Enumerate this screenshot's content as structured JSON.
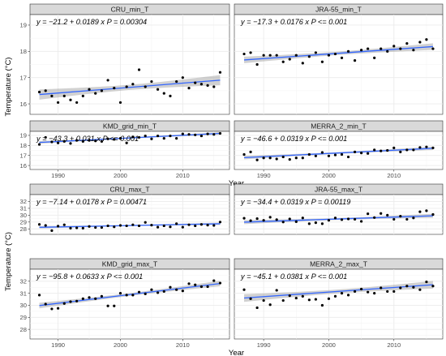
{
  "chart_data": [
    {
      "type": "scatter",
      "title": "CRU_min_T",
      "equation": "y = −21.2 + 0.0189 x   P = 0.00304",
      "xlabel": "Year",
      "ylabel": "Temperature (°C)",
      "xlim": [
        1985.5,
        2017.5
      ],
      "xticks": [
        1990,
        2000,
        2010
      ],
      "ylim": [
        15.6,
        19.4
      ],
      "yticks": [
        16,
        17,
        18,
        19
      ],
      "grid": true,
      "fit": {
        "intercept": -21.2,
        "slope": 0.0189
      },
      "x": [
        1987,
        1988,
        1989,
        1990,
        1991,
        1992,
        1993,
        1994,
        1995,
        1996,
        1997,
        1998,
        1999,
        2000,
        2001,
        2002,
        2003,
        2004,
        2005,
        2006,
        2007,
        2008,
        2009,
        2010,
        2011,
        2012,
        2013,
        2014,
        2015,
        2016
      ],
      "y": [
        16.45,
        16.5,
        16.3,
        16.05,
        16.3,
        16.15,
        16.05,
        16.3,
        16.55,
        16.4,
        16.5,
        16.9,
        16.6,
        16.05,
        16.65,
        16.75,
        17.3,
        16.65,
        16.85,
        16.55,
        16.4,
        16.3,
        16.85,
        17.0,
        16.6,
        16.8,
        16.75,
        16.7,
        16.65,
        17.2
      ]
    },
    {
      "type": "scatter",
      "title": "JRA-55_min_T",
      "equation": "y = −17.3 + 0.0176 x   P <= 0.001",
      "xlabel": "Year",
      "ylabel": "Temperature (°C)",
      "xlim": [
        1985.5,
        2017.5
      ],
      "xticks": [
        1990,
        2000,
        2010
      ],
      "ylim": [
        15.6,
        19.4
      ],
      "yticks": [
        16,
        17,
        18,
        19
      ],
      "grid": true,
      "fit": {
        "intercept": -17.3,
        "slope": 0.0176
      },
      "x": [
        1987,
        1988,
        1989,
        1990,
        1991,
        1992,
        1993,
        1994,
        1995,
        1996,
        1997,
        1998,
        1999,
        2000,
        2001,
        2002,
        2003,
        2004,
        2005,
        2006,
        2007,
        2008,
        2009,
        2010,
        2011,
        2012,
        2013,
        2014,
        2015,
        2016
      ],
      "y": [
        17.9,
        17.95,
        17.5,
        17.85,
        17.85,
        17.85,
        17.6,
        17.7,
        17.85,
        17.55,
        17.8,
        17.95,
        17.6,
        17.85,
        17.9,
        17.75,
        18.0,
        17.65,
        18.05,
        18.1,
        17.75,
        18.1,
        18.0,
        18.2,
        18.1,
        18.3,
        18.05,
        18.35,
        18.45,
        18.1
      ]
    },
    {
      "type": "scatter",
      "title": "KMD_grid_min_T",
      "equation": "y = −43.3 + 0.031 x   P <= 0.001",
      "xlabel": "Year",
      "ylabel": "Temperature (°C)",
      "xlim": [
        1985.5,
        2017.5
      ],
      "xticks": [
        1990,
        2000,
        2010
      ],
      "ylim": [
        15.6,
        19.4
      ],
      "yticks": [
        16,
        17,
        18,
        19
      ],
      "grid": true,
      "fit": {
        "intercept": -43.3,
        "slope": 0.031
      },
      "x": [
        1987,
        1988,
        1989,
        1990,
        1991,
        1992,
        1993,
        1994,
        1995,
        1996,
        1997,
        1998,
        1999,
        2000,
        2001,
        2002,
        2003,
        2004,
        2005,
        2006,
        2007,
        2008,
        2009,
        2010,
        2011,
        2012,
        2013,
        2014,
        2015,
        2016
      ],
      "y": [
        18.1,
        18.8,
        18.35,
        18.25,
        18.4,
        18.2,
        18.5,
        18.4,
        18.5,
        18.45,
        18.4,
        18.65,
        18.6,
        18.7,
        18.25,
        18.85,
        18.8,
        18.95,
        18.65,
        18.95,
        18.7,
        18.95,
        18.7,
        19.15,
        19.1,
        19.05,
        18.95,
        19.15,
        19.1,
        19.2
      ]
    },
    {
      "type": "scatter",
      "title": "MERRA_2_min_T",
      "equation": "y = −46.6 + 0.0319 x   P <= 0.001",
      "xlabel": "Year",
      "ylabel": "Temperature (°C)",
      "xlim": [
        1985.5,
        2017.5
      ],
      "xticks": [
        1990,
        2000,
        2010
      ],
      "ylim": [
        15.6,
        19.4
      ],
      "yticks": [
        16,
        17,
        18,
        19
      ],
      "grid": true,
      "fit": {
        "intercept": -46.6,
        "slope": 0.0319
      },
      "x": [
        1987,
        1988,
        1989,
        1990,
        1991,
        1992,
        1993,
        1994,
        1995,
        1996,
        1997,
        1998,
        1999,
        2000,
        2001,
        2002,
        2003,
        2004,
        2005,
        2006,
        2007,
        2008,
        2009,
        2010,
        2011,
        2012,
        2013,
        2014,
        2015,
        2016
      ],
      "y": [
        17.1,
        17.35,
        16.55,
        16.75,
        16.75,
        16.65,
        16.85,
        16.6,
        16.75,
        16.75,
        17.1,
        16.95,
        17.3,
        16.95,
        17.05,
        17.1,
        16.85,
        17.35,
        17.25,
        17.2,
        17.55,
        17.45,
        17.5,
        17.75,
        17.35,
        17.55,
        17.55,
        17.8,
        17.85,
        17.75
      ]
    },
    {
      "type": "scatter",
      "title": "CRU_max_T",
      "equation": "y = −7.14 + 0.0178 x   P = 0.00471",
      "xlabel": "Year",
      "ylabel": "Temperature (°C)",
      "xlim": [
        1985.5,
        2017.5
      ],
      "xticks": [
        1990,
        2000,
        2010
      ],
      "ylim": [
        27.2,
        33.0
      ],
      "yticks": [
        28,
        29,
        30,
        31,
        32
      ],
      "grid": true,
      "fit": {
        "intercept": -7.14,
        "slope": 0.0178
      },
      "x": [
        1987,
        1988,
        1989,
        1990,
        1991,
        1992,
        1993,
        1994,
        1995,
        1996,
        1997,
        1998,
        1999,
        2000,
        2001,
        2002,
        2003,
        2004,
        2005,
        2006,
        2007,
        2008,
        2009,
        2010,
        2011,
        2012,
        2013,
        2014,
        2015,
        2016
      ],
      "y": [
        28.65,
        28.5,
        27.75,
        28.4,
        28.6,
        28.1,
        28.15,
        28.1,
        28.35,
        28.2,
        28.2,
        28.45,
        28.3,
        28.5,
        28.45,
        28.6,
        28.45,
        28.95,
        28.55,
        28.25,
        28.45,
        28.3,
        28.75,
        28.25,
        28.6,
        28.45,
        28.65,
        28.55,
        28.5,
        29.0
      ]
    },
    {
      "type": "scatter",
      "title": "JRA-55_max_T",
      "equation": "y = −34.4 + 0.0319 x   P = 0.00119",
      "xlabel": "Year",
      "ylabel": "Temperature (°C)",
      "xlim": [
        1985.5,
        2017.5
      ],
      "xticks": [
        1990,
        2000,
        2010
      ],
      "ylim": [
        27.2,
        33.0
      ],
      "yticks": [
        28,
        29,
        30,
        31,
        32
      ],
      "grid": true,
      "fit": {
        "intercept": -34.4,
        "slope": 0.0319
      },
      "x": [
        1987,
        1988,
        1989,
        1990,
        1991,
        1992,
        1993,
        1994,
        1995,
        1996,
        1997,
        1998,
        1999,
        2000,
        2001,
        2002,
        2003,
        2004,
        2005,
        2006,
        2007,
        2008,
        2009,
        2010,
        2011,
        2012,
        2013,
        2014,
        2015,
        2016
      ],
      "y": [
        29.55,
        29.2,
        29.5,
        29.25,
        29.7,
        29.35,
        29.0,
        29.45,
        29.05,
        29.6,
        28.75,
        28.9,
        28.75,
        29.25,
        29.6,
        29.35,
        29.45,
        29.4,
        29.1,
        30.2,
        29.65,
        30.25,
        30.0,
        29.4,
        29.85,
        29.4,
        29.6,
        30.5,
        30.65,
        30.1
      ]
    },
    {
      "type": "scatter",
      "title": "KMD_grid_max_T",
      "equation": "y = −95.8 + 0.0633 x   P <= 0.001",
      "xlabel": "Year",
      "ylabel": "Temperature (°C)",
      "xlim": [
        1985.5,
        2017.5
      ],
      "xticks": [
        1990,
        2000,
        2010
      ],
      "ylim": [
        27.2,
        33.0
      ],
      "yticks": [
        28,
        29,
        30,
        31,
        32
      ],
      "grid": true,
      "fit": {
        "intercept": -95.8,
        "slope": 0.0633
      },
      "x": [
        1987,
        1988,
        1989,
        1990,
        1991,
        1992,
        1993,
        1994,
        1995,
        1996,
        1997,
        1998,
        1999,
        2000,
        2001,
        2002,
        2003,
        2004,
        2005,
        2006,
        2007,
        2008,
        2009,
        2010,
        2011,
        2012,
        2013,
        2014,
        2015,
        2016
      ],
      "y": [
        30.85,
        30.1,
        29.7,
        29.75,
        30.15,
        30.3,
        30.35,
        30.55,
        30.65,
        30.55,
        30.75,
        29.95,
        29.95,
        31.0,
        30.85,
        30.85,
        31.1,
        30.95,
        31.3,
        31.05,
        31.15,
        31.5,
        31.3,
        31.2,
        31.8,
        31.7,
        31.55,
        31.55,
        32.05,
        31.85
      ]
    },
    {
      "type": "scatter",
      "title": "MERRA_2_max_T",
      "equation": "y = −45.1 + 0.0381 x   P <= 0.001",
      "xlabel": "Year",
      "ylabel": "Temperature (°C)",
      "xlim": [
        1985.5,
        2017.5
      ],
      "xticks": [
        1990,
        2000,
        2010
      ],
      "ylim": [
        27.2,
        33.0
      ],
      "yticks": [
        28,
        29,
        30,
        31,
        32
      ],
      "grid": true,
      "fit": {
        "intercept": -45.1,
        "slope": 0.0381
      },
      "x": [
        1987,
        1988,
        1989,
        1990,
        1991,
        1992,
        1993,
        1994,
        1995,
        1996,
        1997,
        1998,
        1999,
        2000,
        2001,
        2002,
        2003,
        2004,
        2005,
        2006,
        2007,
        2008,
        2009,
        2010,
        2011,
        2012,
        2013,
        2014,
        2015,
        2016
      ],
      "y": [
        31.3,
        30.55,
        29.8,
        30.4,
        30.05,
        31.25,
        30.4,
        30.8,
        30.6,
        30.75,
        30.45,
        30.5,
        30.0,
        30.55,
        30.75,
        31.0,
        30.85,
        31.15,
        31.35,
        31.1,
        31.0,
        31.45,
        31.15,
        31.15,
        31.45,
        31.6,
        31.5,
        31.3,
        31.95,
        31.6
      ]
    }
  ],
  "colors": {
    "points": "#000000",
    "trend_line": "#3366ff",
    "confidence_band": "#999999",
    "strip_fill": "#d9d9d9",
    "panel_background": "#ffffff",
    "grid": "#ebebeb"
  }
}
